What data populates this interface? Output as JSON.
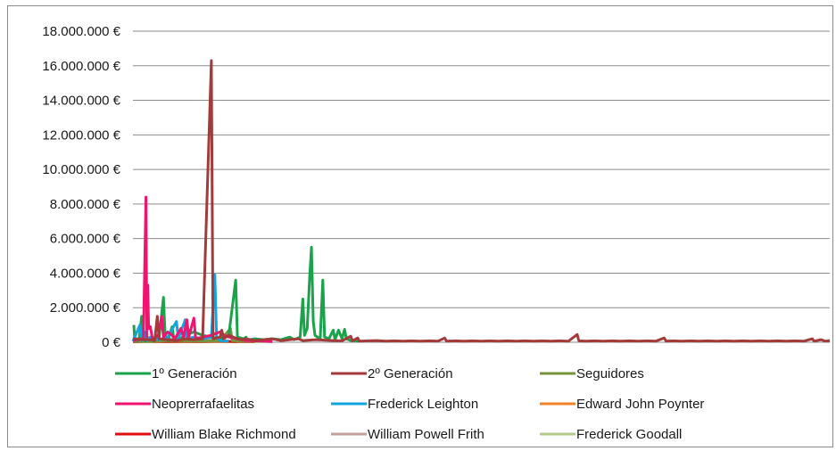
{
  "chart_data": {
    "type": "line",
    "title": "",
    "xlabel": "",
    "ylabel": "",
    "ylim": [
      0,
      18000000
    ],
    "y_ticks": [
      0,
      2000000,
      4000000,
      6000000,
      8000000,
      10000000,
      12000000,
      14000000,
      16000000,
      18000000
    ],
    "y_tick_labels": [
      "0 €",
      "2.000.000 €",
      "4.000.000 €",
      "6.000.000 €",
      "8.000.000 €",
      "10.000.000 €",
      "12.000.000 €",
      "14.000.000 €",
      "16.000.000 €",
      "18.000.000 €"
    ],
    "grid": true,
    "legend_position": "bottom",
    "x_count": 400,
    "series": [
      {
        "name": "1º Generación",
        "color": "#1aa34a",
        "points": [
          [
            1,
            1000000
          ],
          [
            2,
            150000
          ],
          [
            4,
            100000
          ],
          [
            7,
            150000
          ],
          [
            10,
            1500000
          ],
          [
            12,
            300000
          ],
          [
            14,
            80000
          ],
          [
            20,
            150000
          ],
          [
            24,
            80000
          ],
          [
            30,
            250000
          ],
          [
            35,
            2600000
          ],
          [
            37,
            400000
          ],
          [
            40,
            80000
          ],
          [
            45,
            900000
          ],
          [
            47,
            200000
          ],
          [
            52,
            150000
          ],
          [
            60,
            400000
          ],
          [
            70,
            600000
          ],
          [
            80,
            400000
          ],
          [
            90,
            300000
          ],
          [
            100,
            200000
          ],
          [
            110,
            400000
          ],
          [
            118,
            3600000
          ],
          [
            120,
            300000
          ],
          [
            127,
            200000
          ],
          [
            130,
            300000
          ],
          [
            134,
            150000
          ],
          [
            130,
            100000
          ],
          [
            140,
            200000
          ],
          [
            150,
            150000
          ],
          [
            160,
            200000
          ],
          [
            170,
            150000
          ],
          [
            180,
            300000
          ],
          [
            185,
            150000
          ],
          [
            192,
            300000
          ],
          [
            195,
            2500000
          ],
          [
            197,
            400000
          ],
          [
            200,
            800000
          ],
          [
            203,
            3900000
          ],
          [
            205,
            5500000
          ],
          [
            207,
            1200000
          ],
          [
            209,
            400000
          ],
          [
            212,
            300000
          ],
          [
            215,
            200000
          ],
          [
            218,
            3600000
          ],
          [
            220,
            300000
          ],
          [
            225,
            200000
          ],
          [
            230,
            700000
          ],
          [
            232,
            150000
          ],
          [
            236,
            700000
          ],
          [
            240,
            200000
          ],
          [
            243,
            750000
          ],
          [
            245,
            200000
          ],
          [
            250,
            100000
          ],
          [
            255,
            80000
          ],
          [
            260,
            50000
          ]
        ]
      },
      {
        "name": "2º Generación",
        "color": "#a33b3b",
        "points": [
          [
            0,
            200000
          ],
          [
            10,
            150000
          ],
          [
            20,
            150000
          ],
          [
            25,
            100000
          ],
          [
            28,
            1500000
          ],
          [
            30,
            200000
          ],
          [
            40,
            150000
          ],
          [
            50,
            100000
          ],
          [
            60,
            200000
          ],
          [
            70,
            150000
          ],
          [
            80,
            200000
          ],
          [
            90,
            16300000
          ],
          [
            92,
            200000
          ],
          [
            100,
            300000
          ],
          [
            102,
            700000
          ],
          [
            104,
            200000
          ],
          [
            110,
            400000
          ],
          [
            115,
            300000
          ],
          [
            120,
            200000
          ],
          [
            125,
            150000
          ],
          [
            130,
            200000
          ],
          [
            140,
            100000
          ],
          [
            150,
            150000
          ],
          [
            160,
            200000
          ],
          [
            170,
            100000
          ],
          [
            180,
            150000
          ],
          [
            190,
            200000
          ],
          [
            195,
            100000
          ],
          [
            210,
            150000
          ],
          [
            230,
            100000
          ],
          [
            240,
            80000
          ],
          [
            250,
            350000
          ],
          [
            252,
            80000
          ],
          [
            258,
            250000
          ],
          [
            260,
            60000
          ],
          [
            270,
            80000
          ],
          [
            280,
            100000
          ],
          [
            290,
            60000
          ],
          [
            300,
            80000
          ],
          [
            310,
            60000
          ],
          [
            320,
            80000
          ],
          [
            330,
            60000
          ],
          [
            340,
            80000
          ],
          [
            350,
            60000
          ],
          [
            358,
            250000
          ],
          [
            360,
            60000
          ],
          [
            370,
            80000
          ],
          [
            380,
            60000
          ],
          [
            390,
            80000
          ],
          [
            400,
            60000
          ],
          [
            410,
            80000
          ],
          [
            420,
            60000
          ],
          [
            430,
            80000
          ],
          [
            440,
            60000
          ],
          [
            450,
            80000
          ],
          [
            460,
            60000
          ],
          [
            470,
            80000
          ],
          [
            480,
            60000
          ],
          [
            490,
            80000
          ],
          [
            500,
            60000
          ],
          [
            510,
            450000
          ],
          [
            512,
            80000
          ],
          [
            520,
            60000
          ],
          [
            530,
            80000
          ],
          [
            540,
            60000
          ],
          [
            550,
            80000
          ],
          [
            560,
            60000
          ],
          [
            570,
            80000
          ],
          [
            580,
            60000
          ],
          [
            590,
            80000
          ],
          [
            600,
            60000
          ],
          [
            610,
            250000
          ],
          [
            612,
            60000
          ],
          [
            620,
            80000
          ],
          [
            630,
            60000
          ],
          [
            640,
            80000
          ],
          [
            650,
            60000
          ],
          [
            660,
            80000
          ],
          [
            670,
            60000
          ],
          [
            680,
            80000
          ],
          [
            690,
            60000
          ],
          [
            700,
            80000
          ],
          [
            710,
            60000
          ],
          [
            720,
            80000
          ],
          [
            730,
            60000
          ],
          [
            740,
            80000
          ],
          [
            750,
            60000
          ],
          [
            760,
            80000
          ],
          [
            770,
            60000
          ],
          [
            780,
            200000
          ],
          [
            782,
            60000
          ],
          [
            790,
            150000
          ],
          [
            795,
            60000
          ],
          [
            800,
            100000
          ]
        ]
      },
      {
        "name": "Seguidores",
        "color": "#77933c",
        "points": [
          [
            0,
            50000
          ],
          [
            20,
            50000
          ],
          [
            40,
            100000
          ],
          [
            60,
            80000
          ],
          [
            80,
            60000
          ],
          [
            100,
            80000
          ],
          [
            112,
            800000
          ],
          [
            114,
            100000
          ],
          [
            120,
            60000
          ],
          [
            140,
            50000
          ],
          [
            160,
            40000
          ]
        ]
      },
      {
        "name": "Neoprerrafaelitas",
        "color": "#f0136f",
        "points": [
          [
            0,
            100000
          ],
          [
            5,
            150000
          ],
          [
            10,
            200000
          ],
          [
            12,
            150000
          ],
          [
            15,
            8400000
          ],
          [
            16,
            300000
          ],
          [
            17,
            3300000
          ],
          [
            18,
            800000
          ],
          [
            20,
            900000
          ],
          [
            22,
            300000
          ],
          [
            25,
            200000
          ],
          [
            30,
            500000
          ],
          [
            33,
            1500000
          ],
          [
            35,
            300000
          ],
          [
            40,
            600000
          ],
          [
            45,
            400000
          ],
          [
            48,
            200000
          ],
          [
            55,
            800000
          ],
          [
            58,
            300000
          ],
          [
            62,
            1300000
          ],
          [
            64,
            300000
          ],
          [
            70,
            1400000
          ],
          [
            72,
            200000
          ],
          [
            80,
            300000
          ],
          [
            90,
            400000
          ],
          [
            100,
            600000
          ],
          [
            105,
            400000
          ],
          [
            110,
            300000
          ],
          [
            120,
            200000
          ],
          [
            130,
            100000
          ],
          [
            140,
            80000
          ],
          [
            150,
            60000
          ],
          [
            160,
            40000
          ]
        ]
      },
      {
        "name": "Frederick Leighton",
        "color": "#12a5df",
        "points": [
          [
            0,
            50000
          ],
          [
            8,
            1000000
          ],
          [
            10,
            100000
          ],
          [
            14,
            600000
          ],
          [
            16,
            100000
          ],
          [
            20,
            300000
          ],
          [
            30,
            150000
          ],
          [
            40,
            300000
          ],
          [
            50,
            1200000
          ],
          [
            52,
            200000
          ],
          [
            60,
            1300000
          ],
          [
            62,
            200000
          ],
          [
            70,
            300000
          ],
          [
            80,
            200000
          ],
          [
            90,
            300000
          ],
          [
            94,
            3900000
          ],
          [
            96,
            300000
          ],
          [
            98,
            200000
          ],
          [
            100,
            100000
          ],
          [
            110,
            60000
          ]
        ]
      },
      {
        "name": "Edward John Poynter",
        "color": "#f0822a",
        "points": [
          [
            0,
            40000
          ],
          [
            20,
            60000
          ],
          [
            40,
            50000
          ],
          [
            60,
            80000
          ],
          [
            80,
            50000
          ],
          [
            100,
            60000
          ],
          [
            120,
            40000
          ]
        ]
      },
      {
        "name": "William Blake Richmond",
        "color": "#e00e0e",
        "points": [
          [
            0,
            30000
          ],
          [
            20,
            50000
          ],
          [
            40,
            40000
          ],
          [
            60,
            50000
          ],
          [
            80,
            40000
          ],
          [
            100,
            60000
          ],
          [
            120,
            40000
          ],
          [
            140,
            30000
          ]
        ]
      },
      {
        "name": "William Powell Frith",
        "color": "#c4a09a",
        "points": [
          [
            0,
            300000
          ],
          [
            5,
            200000
          ],
          [
            10,
            300000
          ],
          [
            15,
            250000
          ],
          [
            20,
            300000
          ],
          [
            30,
            200000
          ],
          [
            40,
            150000
          ],
          [
            50,
            250000
          ],
          [
            60,
            200000
          ],
          [
            70,
            150000
          ],
          [
            80,
            100000
          ],
          [
            90,
            150000
          ],
          [
            100,
            100000
          ],
          [
            110,
            80000
          ]
        ]
      },
      {
        "name": "Frederick Goodall",
        "color": "#b3cc8c",
        "points": [
          [
            0,
            20000
          ],
          [
            30,
            30000
          ],
          [
            60,
            20000
          ],
          [
            90,
            30000
          ],
          [
            120,
            20000
          ]
        ]
      }
    ]
  }
}
